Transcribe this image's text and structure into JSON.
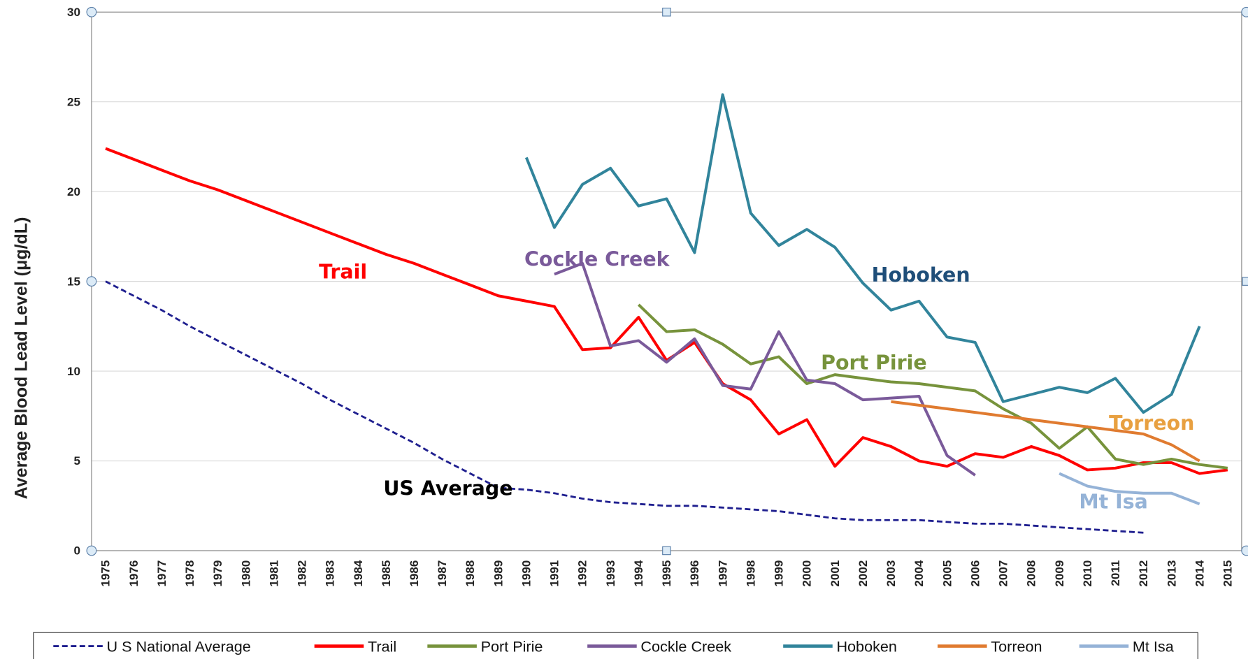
{
  "chart_data": {
    "type": "line",
    "y_label": "Average Blood Lead Level (μg/dL)",
    "categories": [
      "1975",
      "1976",
      "1977",
      "1978",
      "1979",
      "1980",
      "1981",
      "1982",
      "1983",
      "1984",
      "1985",
      "1986",
      "1987",
      "1988",
      "1989",
      "1990",
      "1991",
      "1992",
      "1993",
      "1994",
      "1995",
      "1996",
      "1997",
      "1998",
      "1999",
      "2000",
      "2001",
      "2002",
      "2003",
      "2004",
      "2005",
      "2006",
      "2007",
      "2008",
      "2009",
      "2010",
      "2011",
      "2012",
      "2013",
      "2014",
      "2015"
    ],
    "ylim": [
      0,
      30
    ],
    "yticks": [
      0,
      5,
      10,
      15,
      20,
      25,
      30
    ],
    "grid": true,
    "series": [
      {
        "name": "U S National Average",
        "color": "#1f1f8f",
        "dashed": true,
        "values": [
          15.0,
          14.2,
          13.4,
          12.5,
          11.7,
          10.9,
          10.1,
          9.3,
          8.4,
          7.6,
          6.8,
          6.0,
          5.1,
          4.3,
          3.5,
          3.4,
          3.2,
          2.9,
          2.7,
          2.6,
          2.5,
          2.5,
          2.4,
          2.3,
          2.2,
          2.0,
          1.8,
          1.7,
          1.7,
          1.7,
          1.6,
          1.5,
          1.5,
          1.4,
          1.3,
          1.2,
          1.1,
          1.0,
          null,
          null,
          null
        ]
      },
      {
        "name": "Trail",
        "color": "#ff0000",
        "values": [
          22.4,
          21.8,
          21.2,
          20.6,
          20.1,
          19.5,
          18.9,
          18.3,
          17.7,
          17.1,
          16.5,
          16.0,
          15.4,
          14.8,
          14.2,
          13.9,
          13.6,
          11.2,
          11.3,
          13.0,
          10.6,
          11.6,
          9.3,
          8.4,
          6.5,
          7.3,
          4.7,
          6.3,
          5.8,
          5.0,
          4.7,
          5.4,
          5.2,
          5.8,
          5.3,
          4.5,
          4.6,
          4.9,
          4.9,
          4.3,
          4.5
        ]
      },
      {
        "name": "Port Pirie",
        "color": "#77933c",
        "values": [
          null,
          null,
          null,
          null,
          null,
          null,
          null,
          null,
          null,
          null,
          null,
          null,
          null,
          null,
          null,
          null,
          null,
          null,
          null,
          13.7,
          12.2,
          12.3,
          11.5,
          10.4,
          10.8,
          9.3,
          9.8,
          9.6,
          9.4,
          9.3,
          9.1,
          8.9,
          7.9,
          7.1,
          5.7,
          6.9,
          5.1,
          4.8,
          5.1,
          4.8,
          4.6
        ]
      },
      {
        "name": "Cockle Creek",
        "color": "#7a5a9a",
        "values": [
          null,
          null,
          null,
          null,
          null,
          null,
          null,
          null,
          null,
          null,
          null,
          null,
          null,
          null,
          null,
          null,
          15.4,
          16.0,
          11.4,
          11.7,
          10.5,
          11.8,
          9.2,
          9.0,
          12.2,
          9.5,
          9.3,
          8.4,
          8.5,
          8.6,
          5.3,
          4.2,
          null,
          null,
          null,
          null,
          null,
          null,
          null,
          null,
          null
        ]
      },
      {
        "name": "Hoboken",
        "color": "#31849b",
        "values": [
          null,
          null,
          null,
          null,
          null,
          null,
          null,
          null,
          null,
          null,
          null,
          null,
          null,
          null,
          null,
          21.9,
          18.0,
          20.4,
          21.3,
          19.2,
          19.6,
          16.6,
          25.4,
          18.8,
          17.0,
          17.9,
          16.9,
          14.9,
          13.4,
          13.9,
          11.9,
          11.6,
          8.3,
          8.7,
          9.1,
          8.8,
          9.6,
          7.7,
          8.7,
          12.5,
          null
        ]
      },
      {
        "name": "Torreon",
        "color": "#e07b30",
        "values": [
          null,
          null,
          null,
          null,
          null,
          null,
          null,
          null,
          null,
          null,
          null,
          null,
          null,
          null,
          null,
          null,
          null,
          null,
          null,
          null,
          null,
          null,
          null,
          null,
          null,
          null,
          null,
          null,
          8.3,
          8.1,
          7.9,
          7.7,
          7.5,
          7.3,
          7.1,
          6.9,
          6.7,
          6.5,
          5.9,
          5.0,
          null
        ]
      },
      {
        "name": "Mt Isa",
        "color": "#95b3d7",
        "values": [
          null,
          null,
          null,
          null,
          null,
          null,
          null,
          null,
          null,
          null,
          null,
          null,
          null,
          null,
          null,
          null,
          null,
          null,
          null,
          null,
          null,
          null,
          null,
          null,
          null,
          null,
          null,
          null,
          null,
          null,
          null,
          null,
          null,
          null,
          4.3,
          3.6,
          3.3,
          3.2,
          3.2,
          2.6,
          null
        ]
      }
    ],
    "annotations": [
      {
        "text": "Trail",
        "color": "#ff0000"
      },
      {
        "text": "Cockle Creek",
        "color": "#7a5a9a"
      },
      {
        "text": "Hoboken",
        "color": "#1f4e79"
      },
      {
        "text": "Port Pirie",
        "color": "#77933c"
      },
      {
        "text": "Torreon",
        "color": "#e8a040"
      },
      {
        "text": "US Average",
        "color": "#000000"
      },
      {
        "text": "Mt Isa",
        "color": "#95b3d7"
      }
    ]
  }
}
